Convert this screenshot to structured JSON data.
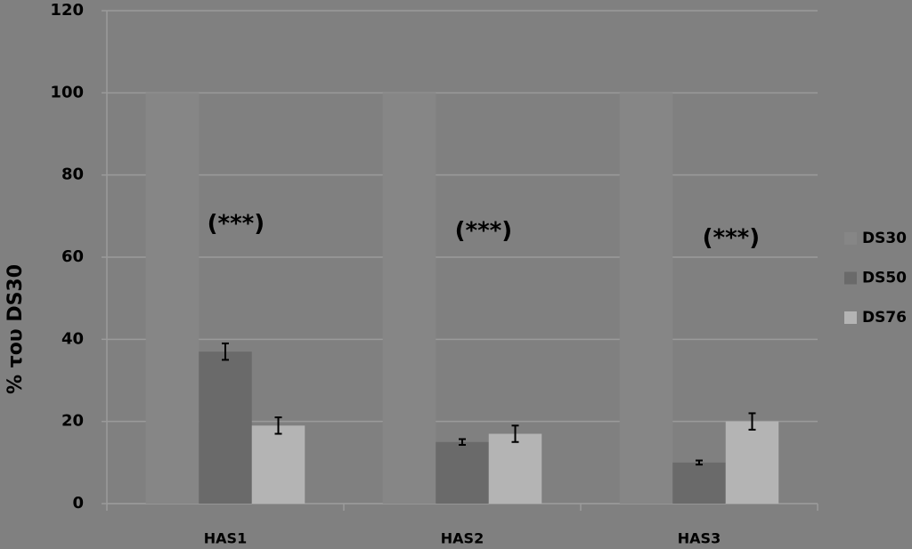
{
  "chart_data": {
    "type": "bar",
    "y_label": "% του DS30",
    "categories": [
      "HAS1",
      "HAS2",
      "HAS3"
    ],
    "series": [
      {
        "name": "DS30",
        "color": "#868686",
        "values": [
          100,
          100,
          100
        ]
      },
      {
        "name": "DS50",
        "color": "#6a6a6a",
        "values": [
          37,
          15,
          10
        ],
        "errors": [
          2,
          0.7,
          0.5
        ]
      },
      {
        "name": "DS76",
        "color": "#b4b4b4",
        "values": [
          19,
          17,
          20
        ],
        "errors": [
          2,
          2,
          2
        ]
      }
    ],
    "annotations": [
      "(***)",
      "(***)",
      "(***)"
    ],
    "ylim": [
      0,
      120
    ],
    "yticks": [
      0,
      20,
      40,
      60,
      80,
      100,
      120
    ],
    "grid": true,
    "legend": "right"
  }
}
